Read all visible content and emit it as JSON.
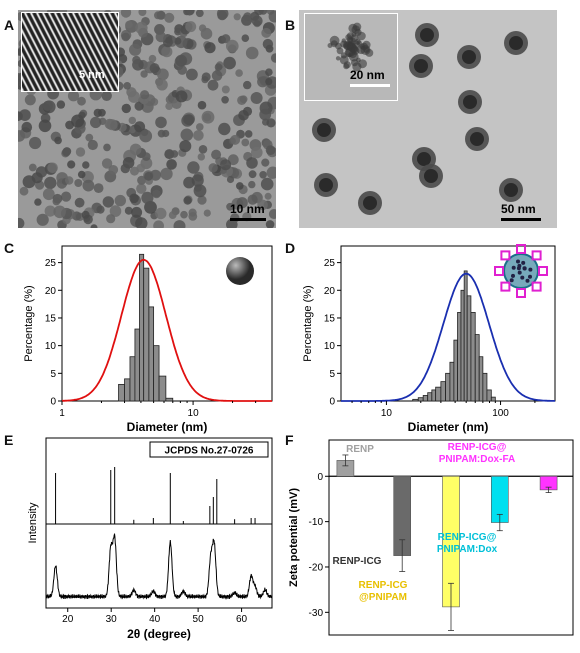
{
  "panels": {
    "A": {
      "letter": "A",
      "inset_scale": "5 nm",
      "scale": "10 nm"
    },
    "B": {
      "letter": "B",
      "inset_scale": "20 nm",
      "scale": "50 nm"
    },
    "C": {
      "letter": "C"
    },
    "D": {
      "letter": "D"
    },
    "E": {
      "letter": "E"
    },
    "F": {
      "letter": "F"
    }
  },
  "chart_data": [
    {
      "id": "C",
      "type": "bar",
      "xscale": "log",
      "xlabel": "Diameter (nm)",
      "ylabel": "Percentage (%)",
      "xlim": [
        1,
        40
      ],
      "ylim": [
        0,
        28
      ],
      "xticks": [
        {
          "v": 1,
          "l": "1"
        },
        {
          "v": 10,
          "l": "10"
        }
      ],
      "yticks": [
        0,
        5,
        10,
        15,
        20,
        25
      ],
      "bins": [
        [
          2.7,
          3.0,
          3
        ],
        [
          3.0,
          3.3,
          4
        ],
        [
          3.3,
          3.6,
          8
        ],
        [
          3.6,
          3.9,
          13
        ],
        [
          3.9,
          4.2,
          26.5
        ],
        [
          4.2,
          4.6,
          24
        ],
        [
          4.6,
          5.0,
          17
        ],
        [
          5.0,
          5.5,
          10
        ],
        [
          5.5,
          6.2,
          4.5
        ],
        [
          6.2,
          7.0,
          0.5
        ]
      ],
      "fit_color": "#e01010",
      "fit_peak": 4.2,
      "fit_sigma": 0.17,
      "fit_amp": 25.5
    },
    {
      "id": "D",
      "type": "bar",
      "xscale": "log",
      "xlabel": "Diameter (nm)",
      "ylabel": "Percentage (%)",
      "xlim": [
        4,
        300
      ],
      "ylim": [
        0,
        28
      ],
      "xticks": [
        {
          "v": 10,
          "l": "10"
        },
        {
          "v": 100,
          "l": "100"
        }
      ],
      "yticks": [
        0,
        5,
        10,
        15,
        20,
        25
      ],
      "bins": [
        [
          17,
          19,
          0.3
        ],
        [
          19,
          21,
          0.6
        ],
        [
          21,
          23,
          1
        ],
        [
          23,
          25,
          1.5
        ],
        [
          25,
          27,
          2
        ],
        [
          27,
          30,
          2.5
        ],
        [
          30,
          33,
          3.5
        ],
        [
          33,
          36,
          5
        ],
        [
          36,
          39,
          7
        ],
        [
          39,
          42,
          11
        ],
        [
          42,
          45,
          16
        ],
        [
          45,
          48,
          20
        ],
        [
          48,
          51,
          23.5
        ],
        [
          51,
          55,
          19
        ],
        [
          55,
          60,
          16
        ],
        [
          60,
          65,
          12
        ],
        [
          65,
          70,
          8
        ],
        [
          70,
          76,
          5
        ],
        [
          76,
          83,
          2
        ],
        [
          83,
          90,
          0.7
        ]
      ],
      "fit_color": "#1a2fb0",
      "fit_peak": 50,
      "fit_sigma": 0.2,
      "fit_amp": 23
    },
    {
      "id": "E",
      "type": "line",
      "xlabel": "2θ (degree)",
      "ylabel": "Intensity",
      "xlim": [
        15,
        67
      ],
      "xticks": [
        20,
        30,
        40,
        50,
        60
      ],
      "legend": "JCPDS No.27-0726",
      "ref_lines": [
        [
          17.2,
          0.85
        ],
        [
          29.9,
          0.9
        ],
        [
          30.8,
          0.95
        ],
        [
          35.2,
          0.07
        ],
        [
          39.7,
          0.1
        ],
        [
          43.6,
          0.85
        ],
        [
          46.6,
          0.05
        ],
        [
          52.7,
          0.3
        ],
        [
          53.5,
          0.45
        ],
        [
          54.3,
          0.75
        ],
        [
          58.4,
          0.08
        ],
        [
          62.2,
          0.1
        ],
        [
          63.1,
          0.1
        ]
      ],
      "peaks": [
        [
          17.2,
          0.45
        ],
        [
          29.9,
          0.7
        ],
        [
          30.8,
          0.85
        ],
        [
          35.2,
          0.1
        ],
        [
          39.7,
          0.08
        ],
        [
          43.6,
          0.8
        ],
        [
          46.6,
          0.08
        ],
        [
          52.9,
          0.55
        ],
        [
          53.7,
          0.75
        ],
        [
          58.4,
          0.06
        ],
        [
          62.2,
          0.3
        ],
        [
          63.1,
          0.15
        ],
        [
          65.4,
          0.1
        ]
      ]
    },
    {
      "id": "F",
      "type": "bar",
      "ylabel": "Zeta potential (mV)",
      "ylim": [
        -35,
        8
      ],
      "yticks": [
        -30,
        -20,
        -10,
        0
      ],
      "categories": [
        "RENP",
        "RENP-ICG",
        "RENP-ICG @PNIPAM",
        "RENP-ICG@ PNIPAM:Dox",
        "RENP-ICG@ PNIPAM:Dox-FA"
      ],
      "values": [
        3.5,
        -17.5,
        -28.8,
        -10.2,
        -3.0
      ],
      "errors": [
        1.2,
        3.5,
        5.2,
        1.8,
        0.6
      ],
      "colors": [
        "#a0a0a0",
        "#6a6a6a",
        "#ffff66",
        "#00e0f0",
        "#ff33ff"
      ],
      "label_colors": [
        "#a0a0a0",
        "#333333",
        "#e8c000",
        "#00c0d8",
        "#ff33ff"
      ],
      "label_lines": [
        [
          "RENP"
        ],
        [
          "RENP-ICG"
        ],
        [
          "RENP-ICG",
          "@PNIPAM"
        ],
        [
          "RENP-ICG@",
          "PNIPAM:Dox"
        ],
        [
          "RENP-ICG@",
          "PNIPAM:Dox-FA"
        ]
      ]
    }
  ]
}
